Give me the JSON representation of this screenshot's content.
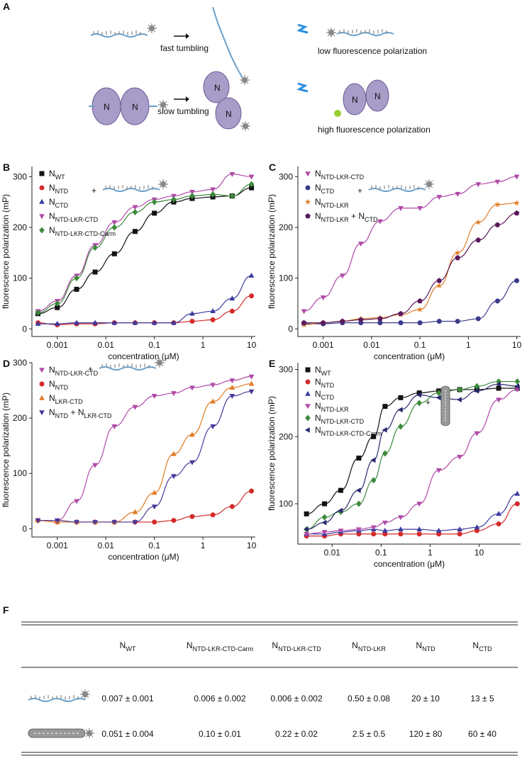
{
  "panel_a": {
    "label": "A",
    "fast": "fast tumbling",
    "low": "low fluorescence polarization",
    "slow": "slow tumbling",
    "high": "high fluorescence polarization",
    "protein": "N"
  },
  "chart_data": [
    {
      "type": "scatter",
      "panel": "B",
      "xlabel": "concentration (μM)",
      "ylabel": "fluorescence polarization (mP)",
      "xscale": "log",
      "legend_note": "+",
      "x": [
        0.0004,
        0.001,
        0.0025,
        0.006,
        0.015,
        0.04,
        0.1,
        0.25,
        0.6,
        1.6,
        4,
        10
      ],
      "xlim": [
        0.0003,
        12
      ],
      "xticks": [
        0.001,
        0.01,
        0.1,
        1,
        10
      ],
      "ylim": [
        -15,
        320
      ],
      "yticks": [
        0,
        100,
        200,
        300
      ],
      "series": [
        {
          "name": "NWT",
          "color": "#111111",
          "marker": "square",
          "values": [
            30,
            42,
            78,
            112,
            148,
            192,
            228,
            250,
            257,
            260,
            262,
            278
          ]
        },
        {
          "name": "NNTD",
          "color": "#d42a2a",
          "marker": "circle",
          "values": [
            12,
            8,
            10,
            10,
            12,
            12,
            12,
            12,
            15,
            18,
            35,
            65
          ]
        },
        {
          "name": "NCTD",
          "color": "#3a3aa0",
          "marker": "triangle-up",
          "values": [
            10,
            10,
            12,
            12,
            12,
            12,
            12,
            12,
            30,
            35,
            60,
            105
          ]
        },
        {
          "name": "NNTD-LKR-CTD",
          "color": "#b04aa8",
          "marker": "triangle-down",
          "values": [
            35,
            55,
            105,
            165,
            210,
            240,
            255,
            262,
            270,
            275,
            305,
            300
          ]
        },
        {
          "name": "NNTD-LKR-CTD-Carm",
          "color": "#3d8a3d",
          "marker": "diamond",
          "values": [
            32,
            50,
            100,
            160,
            200,
            230,
            250,
            255,
            262,
            265,
            262,
            285
          ]
        }
      ]
    },
    {
      "type": "scatter",
      "panel": "C",
      "xlabel": "concentration (μM)",
      "ylabel": "fluorescence polarization (mP)",
      "xscale": "log",
      "legend_note": "+",
      "x": [
        0.0004,
        0.001,
        0.0025,
        0.006,
        0.015,
        0.04,
        0.1,
        0.25,
        0.6,
        1.6,
        4,
        10
      ],
      "xlim": [
        0.0003,
        12
      ],
      "xticks": [
        0.001,
        0.01,
        0.1,
        1,
        10
      ],
      "ylim": [
        -15,
        320
      ],
      "yticks": [
        0,
        100,
        200,
        300
      ],
      "series": [
        {
          "name": "NNTD-LKR-CTD",
          "color": "#b04aa8",
          "marker": "triangle-down",
          "values": [
            35,
            62,
            105,
            168,
            212,
            238,
            238,
            260,
            266,
            285,
            290,
            300
          ]
        },
        {
          "name": "NCTD",
          "color": "#3a3a8c",
          "marker": "circle",
          "values": [
            10,
            10,
            12,
            12,
            12,
            12,
            12,
            15,
            15,
            20,
            55,
            95
          ]
        },
        {
          "name": "NNTD-LKR",
          "color": "#e07b24",
          "marker": "star",
          "values": [
            8,
            12,
            15,
            20,
            22,
            28,
            38,
            85,
            150,
            210,
            245,
            248
          ]
        },
        {
          "name": "NNTD-LKR + NCTD",
          "color": "#5a1a5a",
          "marker": "pentagon",
          "values": [
            12,
            12,
            15,
            18,
            20,
            30,
            55,
            95,
            140,
            175,
            205,
            228
          ]
        }
      ]
    },
    {
      "type": "scatter",
      "panel": "D",
      "xlabel": "concentration (μM)",
      "ylabel": "fluorescence polarization (mP)",
      "xscale": "log",
      "legend_note": "+",
      "x": [
        0.0004,
        0.001,
        0.0025,
        0.006,
        0.015,
        0.04,
        0.1,
        0.25,
        0.6,
        1.6,
        4,
        10
      ],
      "xlim": [
        0.0003,
        12
      ],
      "xticks": [
        0.001,
        0.01,
        0.1,
        1,
        10
      ],
      "ylim": [
        -15,
        300
      ],
      "yticks": [
        0,
        100,
        200,
        300
      ],
      "series": [
        {
          "name": "NNTD-LKR-CTD",
          "color": "#b04aa8",
          "marker": "triangle-down",
          "values": [
            15,
            15,
            50,
            115,
            185,
            220,
            240,
            245,
            255,
            260,
            268,
            275
          ]
        },
        {
          "name": "NNTD",
          "color": "#d42a2a",
          "marker": "circle",
          "values": [
            15,
            12,
            12,
            12,
            12,
            12,
            12,
            15,
            22,
            25,
            40,
            68
          ]
        },
        {
          "name": "NLKR-CTD",
          "color": "#e07b24",
          "marker": "triangle-up",
          "values": [
            15,
            12,
            12,
            12,
            12,
            30,
            65,
            135,
            170,
            230,
            255,
            262
          ]
        },
        {
          "name": "NNTD + NLKR-CTD",
          "color": "#4b3a9a",
          "marker": "triangle-down",
          "values": [
            15,
            15,
            12,
            12,
            12,
            12,
            40,
            95,
            120,
            185,
            240,
            248
          ]
        }
      ]
    },
    {
      "type": "scatter",
      "panel": "E",
      "xlabel": "concentration (μM)",
      "ylabel": "fluorescence polarization (mP)",
      "xscale": "log",
      "legend_note": "+",
      "x": [
        0.003,
        0.007,
        0.015,
        0.035,
        0.07,
        0.12,
        0.25,
        0.6,
        1.5,
        4,
        9,
        25,
        60
      ],
      "xlim": [
        0.002,
        70
      ],
      "xticks": [
        0.01,
        0.1,
        1,
        10
      ],
      "ylim": [
        40,
        310
      ],
      "yticks": [
        100,
        200,
        300
      ],
      "series": [
        {
          "name": "NWT",
          "color": "#111111",
          "marker": "square",
          "values": [
            85,
            100,
            120,
            168,
            200,
            245,
            258,
            265,
            268,
            270,
            270,
            272,
            272
          ]
        },
        {
          "name": "NNTD",
          "color": "#d42a2a",
          "marker": "circle",
          "values": [
            52,
            52,
            55,
            55,
            55,
            55,
            55,
            55,
            55,
            55,
            60,
            70,
            100
          ]
        },
        {
          "name": "NCTD",
          "color": "#3a3aa0",
          "marker": "triangle-up",
          "values": [
            55,
            55,
            58,
            60,
            62,
            60,
            62,
            62,
            60,
            62,
            65,
            85,
            115
          ]
        },
        {
          "name": "NNTD-LKR",
          "color": "#b04aa8",
          "marker": "triangle-down",
          "values": [
            55,
            58,
            60,
            62,
            65,
            72,
            80,
            100,
            150,
            170,
            205,
            255,
            270
          ]
        },
        {
          "name": "NNTD-LKR-CTD",
          "color": "#3d8a3d",
          "marker": "diamond",
          "values": [
            62,
            80,
            88,
            100,
            135,
            175,
            215,
            250,
            265,
            270,
            275,
            282,
            282
          ]
        },
        {
          "name": "NNTD-LKR-CTD-Carm",
          "color": "#2a2a70",
          "marker": "triangle-left",
          "values": [
            62,
            72,
            90,
            120,
            165,
            210,
            240,
            262,
            258,
            255,
            268,
            278,
            275
          ]
        }
      ]
    }
  ],
  "table": {
    "label": "F",
    "columns": [
      "NWT",
      "NNTD-LKR-CTD-Carm",
      "NNTD-LKR-CTD",
      "NNTD-LKR",
      "NNTD",
      "NCTD"
    ],
    "rows": [
      [
        "0.007 ± 0.001",
        "0.006 ± 0.002",
        "0.006 ± 0.002",
        "0.50 ± 0.08",
        "20 ± 10",
        "13 ± 5"
      ],
      [
        "0.051 ± 0.004",
        "0.10 ± 0.01",
        "0.22 ± 0.02",
        "2.5 ± 0.5",
        "120 ± 80",
        "60 ± 40"
      ]
    ]
  }
}
